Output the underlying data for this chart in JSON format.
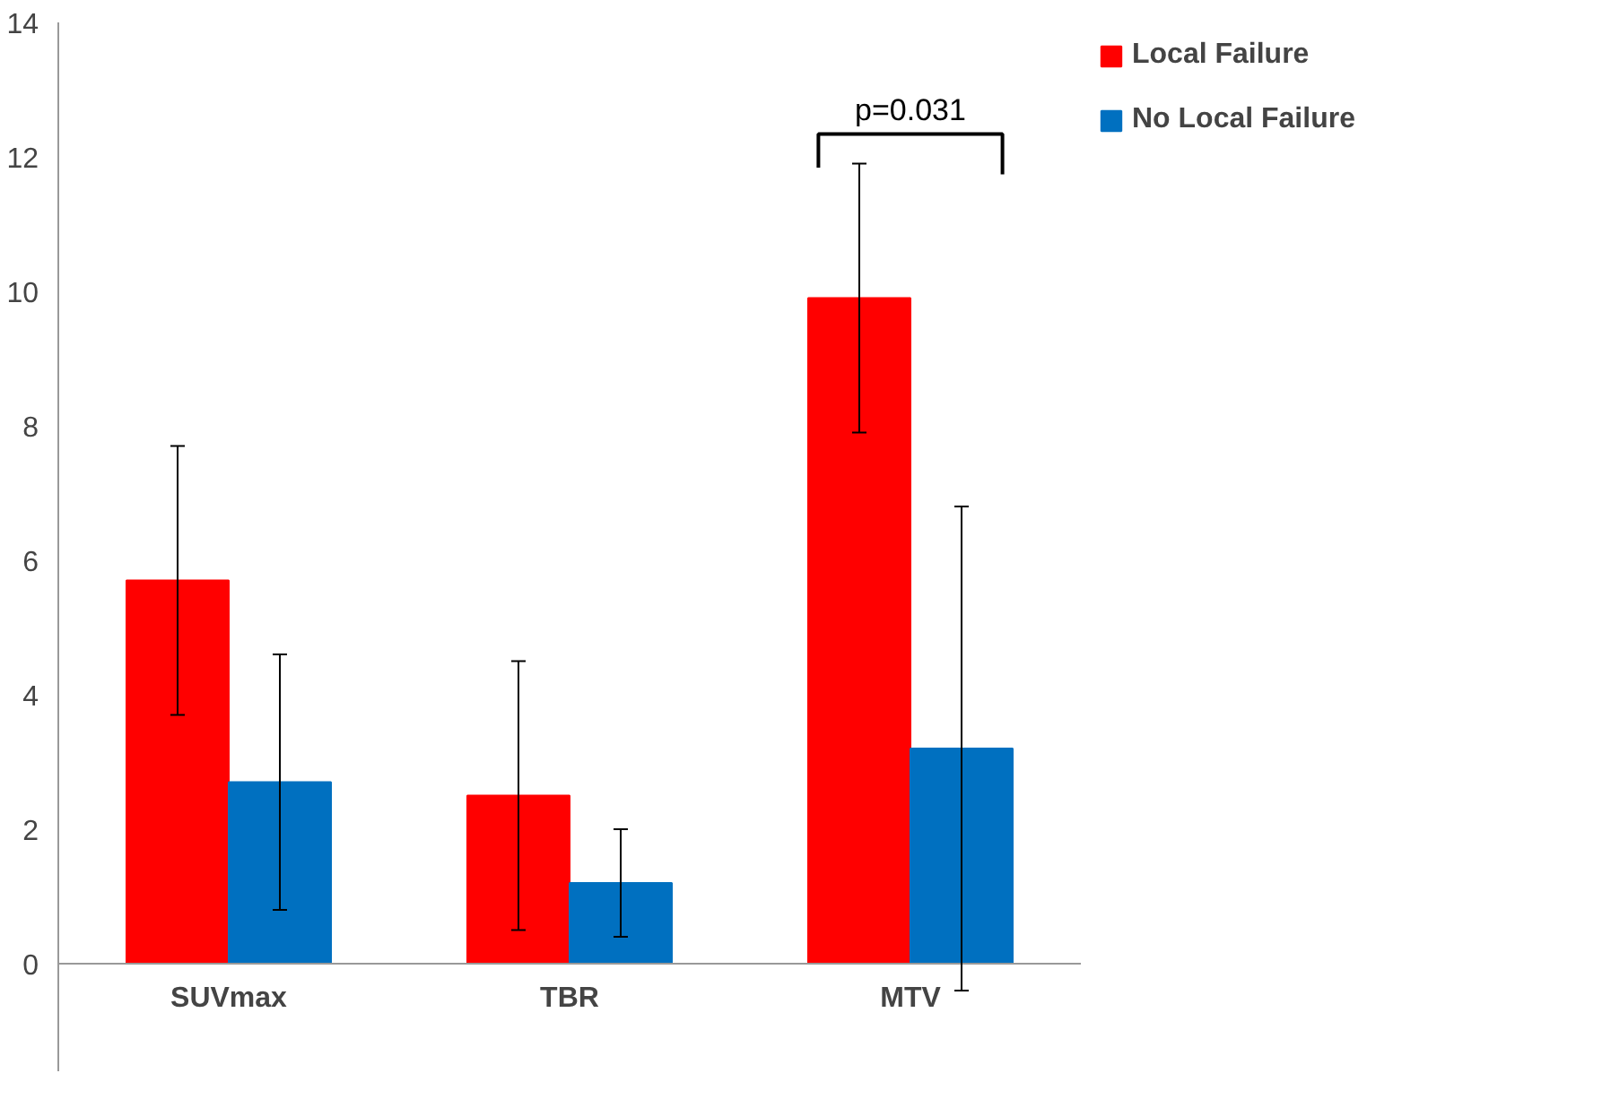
{
  "chart_data": {
    "type": "bar",
    "categories": [
      "SUVmax",
      "TBR",
      "MTV"
    ],
    "series": [
      {
        "name": "Local Failure",
        "color": "#ff0000",
        "values": [
          5.7,
          2.5,
          9.9
        ],
        "errors": [
          [
            3.7,
            7.7
          ],
          [
            0.5,
            4.5
          ],
          [
            7.9,
            11.9
          ]
        ]
      },
      {
        "name": "No Local Failure",
        "color": "#0070c0",
        "values": [
          2.7,
          1.2,
          3.2
        ],
        "errors": [
          [
            0.8,
            4.6
          ],
          [
            0.4,
            2.0
          ],
          [
            -0.4,
            6.8
          ]
        ]
      }
    ],
    "ylim": [
      -1.6,
      14
    ],
    "yticks": [
      0,
      2,
      4,
      6,
      8,
      10,
      12,
      14
    ],
    "grid": false,
    "legend": "right",
    "annotations": [
      "p=0.031"
    ]
  }
}
